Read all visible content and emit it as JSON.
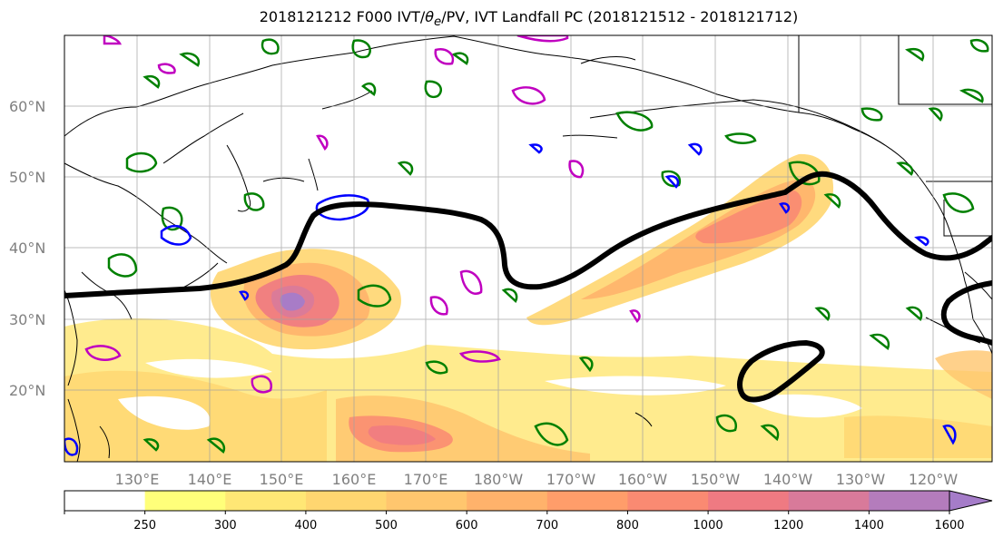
{
  "title": {
    "prefix": "2018121212 F000 IVT/",
    "theta": "θ",
    "theta_sub": "e",
    "suffix": "/PV, IVT Landfall PC (2018121512 - 2018121712)"
  },
  "colors": {
    "ivt_jet_line": "#000000",
    "pv_contour": "#008000",
    "theta_e_contour_low": "#0000ff",
    "theta_e_contour_high": "#c000c0",
    "coastline": "#000000",
    "gridline": "#a0a0a0"
  },
  "chart_data": {
    "type": "contour-map",
    "lat_labels": [
      "60°N",
      "50°N",
      "40°N",
      "30°N",
      "20°N"
    ],
    "lon_labels": [
      "130°E",
      "140°E",
      "150°E",
      "160°E",
      "170°E",
      "180°W",
      "170°W",
      "160°W",
      "150°W",
      "140°W",
      "130°W",
      "120°W"
    ],
    "colorbar": {
      "ticks": [
        "250",
        "300",
        "400",
        "500",
        "600",
        "700",
        "800",
        "1000",
        "1200",
        "1400",
        "1600"
      ],
      "bin_colors": [
        "#ffffff",
        "#ffff7a",
        "#ffe775",
        "#ffd670",
        "#ffc66e",
        "#ffb26b",
        "#ff9d6a",
        "#fa8a72",
        "#ef7a82",
        "#d87a9a",
        "#b47cbc",
        "#a57cc9"
      ],
      "extend": "max"
    },
    "grid": true
  }
}
